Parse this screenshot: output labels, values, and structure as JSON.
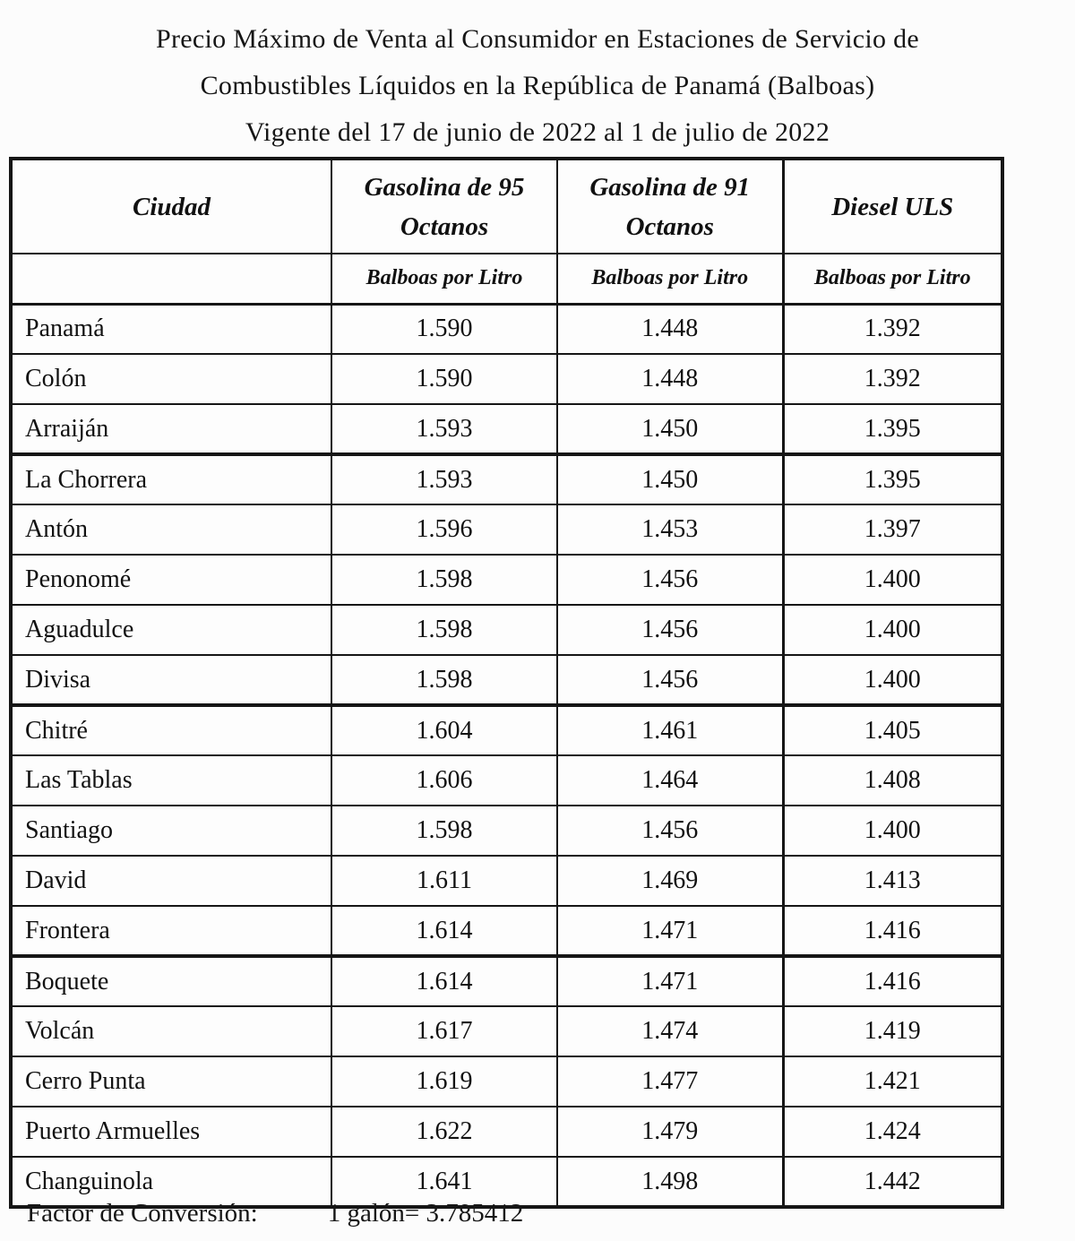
{
  "title": {
    "line1": "Precio Máximo de Venta al Consumidor en Estaciones de Servicio de",
    "line2": "Combustibles Líquidos en la República de Panamá (Balboas)",
    "line3": "Vigente del 17 de junio de 2022 al 1 de julio de 2022"
  },
  "table": {
    "columns": {
      "city": "Ciudad",
      "g95": "Gasolina de 95 Octanos",
      "g91": "Gasolina de 91 Octanos",
      "diesel": "Diesel ULS"
    },
    "unit_row": {
      "city": "",
      "g95": "Balboas por Litro",
      "g91": "Balboas por Litro",
      "diesel": "Balboas por Litro"
    },
    "rows": [
      {
        "city": "Panamá",
        "g95": "1.590",
        "g91": "1.448",
        "diesel": "1.392",
        "group_start": false
      },
      {
        "city": "Colón",
        "g95": "1.590",
        "g91": "1.448",
        "diesel": "1.392",
        "group_start": false
      },
      {
        "city": "Arraiján",
        "g95": "1.593",
        "g91": "1.450",
        "diesel": "1.395",
        "group_start": false
      },
      {
        "city": "La Chorrera",
        "g95": "1.593",
        "g91": "1.450",
        "diesel": "1.395",
        "group_start": true
      },
      {
        "city": "Antón",
        "g95": "1.596",
        "g91": "1.453",
        "diesel": "1.397",
        "group_start": false
      },
      {
        "city": "Penonomé",
        "g95": "1.598",
        "g91": "1.456",
        "diesel": "1.400",
        "group_start": false
      },
      {
        "city": "Aguadulce",
        "g95": "1.598",
        "g91": "1.456",
        "diesel": "1.400",
        "group_start": false
      },
      {
        "city": "Divisa",
        "g95": "1.598",
        "g91": "1.456",
        "diesel": "1.400",
        "group_start": false
      },
      {
        "city": "Chitré",
        "g95": "1.604",
        "g91": "1.461",
        "diesel": "1.405",
        "group_start": true
      },
      {
        "city": "Las Tablas",
        "g95": "1.606",
        "g91": "1.464",
        "diesel": "1.408",
        "group_start": false
      },
      {
        "city": "Santiago",
        "g95": "1.598",
        "g91": "1.456",
        "diesel": "1.400",
        "group_start": false
      },
      {
        "city": "David",
        "g95": "1.611",
        "g91": "1.469",
        "diesel": "1.413",
        "group_start": false
      },
      {
        "city": "Frontera",
        "g95": "1.614",
        "g91": "1.471",
        "diesel": "1.416",
        "group_start": false
      },
      {
        "city": "Boquete",
        "g95": "1.614",
        "g91": "1.471",
        "diesel": "1.416",
        "group_start": true
      },
      {
        "city": "Volcán",
        "g95": "1.617",
        "g91": "1.474",
        "diesel": "1.419",
        "group_start": false
      },
      {
        "city": "Cerro Punta",
        "g95": "1.619",
        "g91": "1.477",
        "diesel": "1.421",
        "group_start": false
      },
      {
        "city": "Puerto Armuelles",
        "g95": "1.622",
        "g91": "1.479",
        "diesel": "1.424",
        "group_start": false
      },
      {
        "city": "Changuinola",
        "g95": "1.641",
        "g91": "1.498",
        "diesel": "1.442",
        "group_start": false
      }
    ]
  },
  "footer": {
    "label": "Factor de Conversión:",
    "value": "1 galón= 3.785412"
  }
}
